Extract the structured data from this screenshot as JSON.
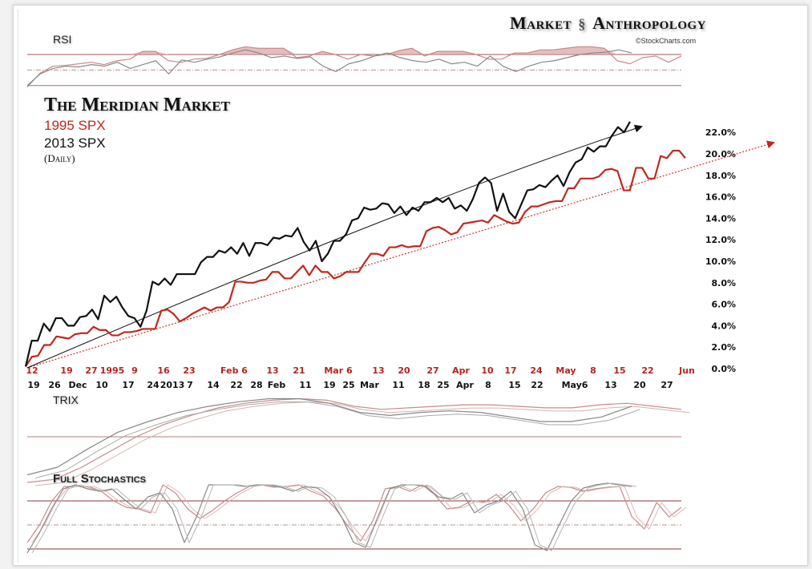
{
  "header": {
    "logo_text_left": "Market",
    "logo_text_right": "Anthropology",
    "logo_icon": "dna-helix-icon",
    "credit": "©StockCharts.com"
  },
  "legend": {
    "title": "The Meridian Market",
    "series_1995": "1995 SPX",
    "series_2013": "2013 SPX",
    "frequency": "(Daily)"
  },
  "colors": {
    "spx_1995": "#c0281e",
    "spx_2013": "#111111",
    "indicator_gray": "#888888",
    "indicator_pink": "#c98a8a"
  },
  "panels": {
    "rsi": "RSI",
    "trix": "TRIX",
    "stochastics": "Full Stochastics"
  },
  "chart_data": [
    {
      "type": "line",
      "title": "The Meridian Market",
      "ylim": [
        0,
        22
      ],
      "grid": false,
      "y_ticks": [
        "0.0%",
        "2.0%",
        "4.0%",
        "6.0%",
        "8.0%",
        "10.0%",
        "12.0%",
        "14.0%",
        "16.0%",
        "18.0%",
        "20.0%",
        "22.0%"
      ],
      "x_ticks_1995": [
        "12",
        "19",
        "27",
        "1995",
        "9",
        "16",
        "23",
        "Feb 6",
        "13",
        "21",
        "Mar 6",
        "13",
        "20",
        "27",
        "Apr",
        "10",
        "17",
        "24",
        "May",
        "8",
        "15",
        "22",
        "Jun"
      ],
      "x_ticks_2013": [
        "19",
        "26",
        "Dec",
        "10",
        "17",
        "24",
        "2013",
        "7",
        "14",
        "22",
        "28",
        "Feb",
        "11",
        "19",
        "25",
        "Mar",
        "11",
        "18",
        "25",
        "Apr",
        "8",
        "15",
        "22",
        "May6",
        "13",
        "20",
        "27"
      ],
      "series": [
        {
          "name": "1995 SPX",
          "color": "#c0281e",
          "trend": "linear dotted arrow",
          "values": [
            0.2,
            1.1,
            1.2,
            2.2,
            2.2,
            3.0,
            2.9,
            2.8,
            3.2,
            3.3,
            3.3,
            3.9,
            3.6,
            3.6,
            3.1,
            3.1,
            3.4,
            3.4,
            3.5,
            3.7,
            3.7,
            3.7,
            5.4,
            5.5,
            5.1,
            4.4,
            4.7,
            5.1,
            5.4,
            5.7,
            5.4,
            5.7,
            5.7,
            6.2,
            8.1,
            8.1,
            8.0,
            8.0,
            8.2,
            8.3,
            9.0,
            9.0,
            8.4,
            8.4,
            9.0,
            9.6,
            8.7,
            9.6,
            9.0,
            9.0,
            8.4,
            8.6,
            9.0,
            9.0,
            9.0,
            9.9,
            10.7,
            10.7,
            10.5,
            11.3,
            11.3,
            11.5,
            11.3,
            11.4,
            11.4,
            12.8,
            13.1,
            13.2,
            12.9,
            12.5,
            12.7,
            13.5,
            13.6,
            13.7,
            13.8,
            13.6,
            14.3,
            14.0,
            13.7,
            13.5,
            13.6,
            14.6,
            15.1,
            15.1,
            15.3,
            15.5,
            15.6,
            15.6,
            16.8,
            16.8,
            17.7,
            17.7,
            17.7,
            17.9,
            18.5,
            18.6,
            18.4,
            16.6,
            16.6,
            18.7,
            18.7,
            17.7,
            17.7,
            19.8,
            19.6,
            20.3,
            20.3,
            19.6
          ]
        },
        {
          "name": "2013 SPX",
          "color": "#111111",
          "trend": "curved solid arrow",
          "values": [
            0.2,
            2.6,
            2.6,
            4.2,
            3.5,
            4.7,
            4.7,
            4.0,
            4.0,
            4.8,
            4.9,
            5.5,
            4.6,
            6.8,
            6.2,
            6.7,
            5.7,
            4.9,
            4.7,
            3.9,
            5.4,
            8.1,
            7.8,
            8.4,
            7.8,
            8.8,
            8.8,
            8.8,
            8.8,
            9.9,
            10.4,
            10.4,
            11.0,
            10.8,
            11.3,
            10.7,
            11.7,
            10.5,
            11.7,
            11.7,
            11.5,
            12.2,
            12.1,
            12.4,
            12.3,
            13.1,
            11.8,
            11.0,
            11.9,
            10.0,
            10.7,
            11.9,
            11.9,
            12.5,
            13.8,
            14.0,
            15.0,
            14.8,
            14.9,
            15.4,
            15.3,
            14.5,
            15.1,
            14.3,
            15.0,
            14.7,
            15.5,
            15.5,
            15.9,
            15.5,
            15.9,
            14.9,
            15.2,
            14.7,
            15.8,
            17.3,
            17.8,
            17.3,
            14.7,
            16.3,
            14.6,
            14.0,
            15.3,
            16.6,
            16.7,
            17.1,
            16.9,
            17.5,
            18.0,
            17.0,
            18.3,
            19.2,
            19.5,
            20.6,
            20.2,
            20.7,
            20.7,
            21.7,
            22.5,
            22.0,
            23.0
          ]
        }
      ]
    },
    {
      "type": "line",
      "title": "RSI",
      "levels": [
        70,
        50,
        30
      ],
      "series": [
        {
          "name": "1995 SPX",
          "color": "#c98a8a",
          "values": [
            28,
            46,
            55,
            56,
            58,
            60,
            57,
            62,
            64,
            74,
            74,
            62,
            60,
            64,
            65,
            70,
            76,
            80,
            78,
            78,
            78,
            66,
            68,
            74,
            70,
            64,
            70,
            68,
            70,
            75,
            78,
            68,
            74,
            74,
            74,
            70,
            64,
            64,
            72,
            72,
            76,
            76,
            78,
            80,
            80,
            78,
            62,
            58,
            66,
            68,
            60,
            68
          ]
        },
        {
          "name": "2013 SPX",
          "color": "#888888",
          "values": [
            30,
            45,
            52,
            55,
            54,
            57,
            55,
            60,
            52,
            57,
            62,
            45,
            63,
            60,
            64,
            67,
            72,
            76,
            72,
            66,
            68,
            65,
            67,
            55,
            48,
            58,
            62,
            68,
            72,
            66,
            62,
            60,
            64,
            58,
            60,
            55,
            68,
            55,
            48,
            55,
            60,
            62,
            66,
            70,
            72,
            73,
            76,
            72
          ]
        }
      ]
    },
    {
      "type": "line",
      "title": "TRIX",
      "series": [
        {
          "name": "1995 SPX",
          "color": "#c98a8a",
          "values": [
            -0.3,
            -0.28,
            -0.2,
            -0.1,
            0.0,
            0.08,
            0.14,
            0.19,
            0.22,
            0.24,
            0.25,
            0.24,
            0.2,
            0.18,
            0.19,
            0.2,
            0.21,
            0.21,
            0.2,
            0.19,
            0.19,
            0.21,
            0.22,
            0.2,
            0.18
          ]
        },
        {
          "name": "2013 SPX",
          "color": "#888888",
          "values": [
            -0.25,
            -0.2,
            -0.08,
            0.03,
            0.1,
            0.16,
            0.2,
            0.23,
            0.25,
            0.25,
            0.22,
            0.16,
            0.14,
            0.16,
            0.17,
            0.16,
            0.13,
            0.1,
            0.1,
            0.13,
            0.2
          ]
        }
      ]
    },
    {
      "type": "line",
      "title": "Full Stochastics",
      "levels": [
        80,
        50,
        20
      ],
      "series": [
        {
          "name": "1995 SPX",
          "color": "#c98a8a",
          "values": [
            28,
            50,
            80,
            98,
            98,
            98,
            92,
            80,
            72,
            70,
            65,
            100,
            90,
            70,
            58,
            68,
            80,
            90,
            98,
            100,
            97,
            98,
            100,
            92,
            86,
            70,
            48,
            30,
            55,
            95,
            98,
            92,
            100,
            88,
            70,
            72,
            80,
            78,
            88,
            75,
            55,
            70,
            90,
            98,
            97,
            92,
            95,
            97,
            98,
            60,
            45,
            78,
            60,
            72
          ]
        },
        {
          "name": "2013 SPX",
          "color": "#888888",
          "values": [
            15,
            40,
            70,
            95,
            100,
            95,
            92,
            95,
            82,
            70,
            85,
            90,
            70,
            28,
            60,
            100,
            100,
            100,
            98,
            100,
            100,
            97,
            92,
            98,
            96,
            85,
            60,
            28,
            22,
            60,
            95,
            100,
            100,
            98,
            85,
            82,
            90,
            65,
            75,
            80,
            92,
            70,
            25,
            18,
            50,
            80,
            96,
            100,
            102,
            100,
            98
          ]
        }
      ]
    }
  ]
}
